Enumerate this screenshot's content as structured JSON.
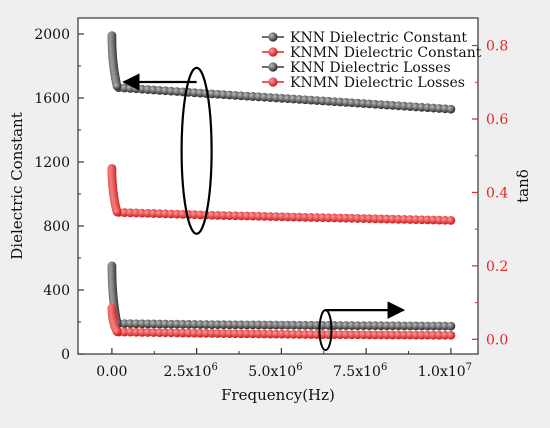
{
  "chart_data": {
    "type": "scatter",
    "xlabel": "Frequency(Hz)",
    "ylabel_left": "Dielectric Constant",
    "ylabel_right": "tanδ",
    "xlim": [
      -1000000,
      10800000
    ],
    "ylim_left": [
      0,
      2100
    ],
    "ylim_right": [
      -0.04,
      0.875
    ],
    "x_ticks": [
      0,
      2500000,
      5000000,
      7500000,
      10000000
    ],
    "x_tick_labels": [
      {
        "base": "0.00",
        "exp": ""
      },
      {
        "base": "2.5x10",
        "exp": "6"
      },
      {
        "base": "5.0x10",
        "exp": "6"
      },
      {
        "base": "7.5x10",
        "exp": "6"
      },
      {
        "base": "1.0x10",
        "exp": "7"
      }
    ],
    "y_left_ticks": [
      0,
      400,
      800,
      1200,
      1600,
      2000
    ],
    "y_left_tick_labels": [
      "0",
      "400",
      "800",
      "1200",
      "1600",
      "2000"
    ],
    "y_right_ticks": [
      0.0,
      0.2,
      0.4,
      0.6,
      0.8
    ],
    "y_right_tick_labels": [
      "0.0",
      "0.2",
      "0.4",
      "0.6",
      "0.8"
    ],
    "legend_position": "top-right",
    "grid": false,
    "series": [
      {
        "name": "KNN Dielectric Constant",
        "axis": "left",
        "color": "#3d3d3d",
        "low_freq": [
          [
            1000,
            1990
          ],
          [
            2000,
            1980
          ],
          [
            5000,
            1940
          ],
          [
            10000,
            1890
          ],
          [
            20000,
            1830
          ],
          [
            40000,
            1760
          ],
          [
            70000,
            1710
          ],
          [
            100000,
            1690
          ],
          [
            150000,
            1675
          ]
        ],
        "trend": [
          [
            200000,
            1665
          ],
          [
            3000000,
            1625
          ],
          [
            6000000,
            1585
          ],
          [
            10000000,
            1530
          ]
        ]
      },
      {
        "name": "KNMN Dielectric Constant",
        "axis": "left",
        "color": "#e22525",
        "low_freq": [
          [
            1000,
            1160
          ],
          [
            2000,
            1130
          ],
          [
            5000,
            1080
          ],
          [
            10000,
            1030
          ],
          [
            20000,
            980
          ],
          [
            40000,
            940
          ],
          [
            70000,
            910
          ],
          [
            100000,
            895
          ],
          [
            150000,
            888
          ]
        ],
        "trend": [
          [
            200000,
            885
          ],
          [
            3000000,
            867
          ],
          [
            6000000,
            853
          ],
          [
            10000000,
            835
          ]
        ]
      },
      {
        "name": "KNN Dielectric Losses",
        "axis": "right",
        "color": "#3d3d3d",
        "low_freq": [
          [
            1000,
            0.2
          ],
          [
            2000,
            0.16
          ],
          [
            5000,
            0.12
          ],
          [
            10000,
            0.09
          ],
          [
            20000,
            0.07
          ],
          [
            40000,
            0.055
          ],
          [
            70000,
            0.048
          ],
          [
            100000,
            0.045
          ],
          [
            150000,
            0.044
          ]
        ],
        "trend": [
          [
            200000,
            0.043
          ],
          [
            3000000,
            0.04
          ],
          [
            6000000,
            0.038
          ],
          [
            10000000,
            0.036
          ]
        ]
      },
      {
        "name": "KNMN Dielectric Losses",
        "axis": "right",
        "color": "#e22525",
        "low_freq": [
          [
            1000,
            0.085
          ],
          [
            2000,
            0.07
          ],
          [
            5000,
            0.055
          ],
          [
            10000,
            0.045
          ],
          [
            20000,
            0.035
          ],
          [
            40000,
            0.028
          ],
          [
            70000,
            0.024
          ],
          [
            100000,
            0.022
          ],
          [
            150000,
            0.021
          ]
        ],
        "trend": [
          [
            200000,
            0.02
          ],
          [
            3000000,
            0.016
          ],
          [
            6000000,
            0.013
          ],
          [
            10000000,
            0.011
          ]
        ]
      }
    ]
  }
}
